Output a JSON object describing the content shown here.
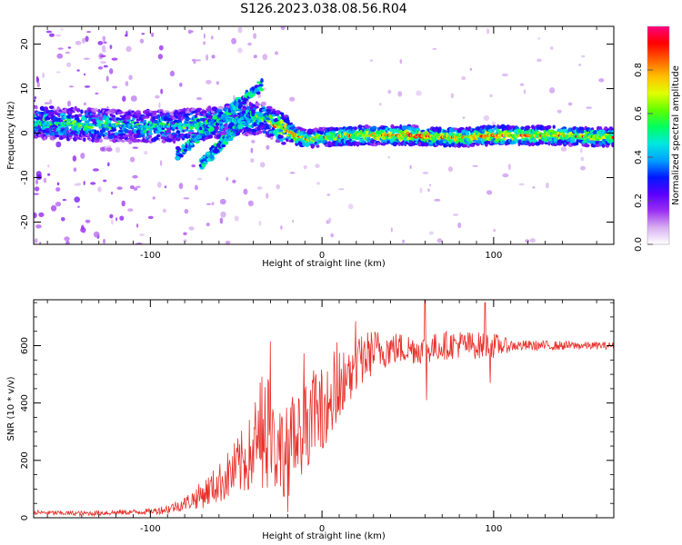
{
  "figure_title": "S126.2023.038.08.56.R04",
  "chart_data": [
    {
      "type": "heatmap",
      "title": "",
      "xlabel": "Height of straight line (km)",
      "ylabel": "Frequency (Hz)",
      "xlim": [
        -168,
        170
      ],
      "ylim": [
        -25,
        24
      ],
      "x_ticks": [
        -100,
        0,
        100
      ],
      "y_ticks": [
        -20,
        -10,
        0,
        10,
        20
      ],
      "colorbar": {
        "label": "Normalized spectral amplitude",
        "range": [
          0,
          1
        ],
        "ticks": [
          0.0,
          0.2,
          0.4,
          0.6,
          0.8
        ],
        "tick_labels": [
          "0.0",
          "0.2",
          "0.4",
          "0.6",
          "0.8"
        ],
        "colormap": [
          "#ffffff",
          "#d8b0f0",
          "#9b2ff2",
          "#5a00ff",
          "#0018ff",
          "#00a0ff",
          "#00e8e0",
          "#00ff60",
          "#60ff00",
          "#e0ff00",
          "#ffc000",
          "#ff6000",
          "#ff0000",
          "#ff0080"
        ]
      },
      "ridge": [
        {
          "x": -168,
          "f": 2.5,
          "amp": 0.45
        },
        {
          "x": -150,
          "f": 2.2,
          "amp": 0.5
        },
        {
          "x": -130,
          "f": 1.8,
          "amp": 0.45
        },
        {
          "x": -110,
          "f": 1.5,
          "amp": 0.45
        },
        {
          "x": -90,
          "f": 1.5,
          "amp": 0.45
        },
        {
          "x": -70,
          "f": 2.0,
          "amp": 0.45
        },
        {
          "x": -50,
          "f": 3.0,
          "amp": 0.45
        },
        {
          "x": -35,
          "f": 3.5,
          "amp": 0.5
        },
        {
          "x": -25,
          "f": 1.5,
          "amp": 0.7
        },
        {
          "x": -15,
          "f": -0.5,
          "amp": 0.75
        },
        {
          "x": -8,
          "f": -1.5,
          "amp": 0.6
        },
        {
          "x": 0,
          "f": -1.0,
          "amp": 0.5
        },
        {
          "x": 20,
          "f": -0.5,
          "amp": 0.65
        },
        {
          "x": 50,
          "f": -0.5,
          "amp": 0.75
        },
        {
          "x": 80,
          "f": -1.0,
          "amp": 0.7
        },
        {
          "x": 100,
          "f": -0.5,
          "amp": 0.8
        },
        {
          "x": 130,
          "f": -0.5,
          "amp": 0.65
        },
        {
          "x": 170,
          "f": -1.0,
          "amp": 0.6
        }
      ],
      "rising_branches": [
        {
          "x": [
            -85,
            -35
          ],
          "f": [
            -5,
            11
          ]
        },
        {
          "x": [
            -70,
            -40
          ],
          "f": [
            -7,
            5
          ]
        }
      ]
    },
    {
      "type": "line",
      "title": "",
      "xlabel": "Height of straight line (km)",
      "ylabel": "SNR (10 * v/v)",
      "xlim": [
        -168,
        170
      ],
      "ylim": [
        0,
        760
      ],
      "x_ticks": [
        -100,
        0,
        100
      ],
      "y_ticks": [
        0,
        200,
        400,
        600
      ],
      "series": [
        {
          "color": "#e8302a",
          "points": [
            [
              -168,
              18
            ],
            [
              -140,
              15
            ],
            [
              -120,
              18
            ],
            [
              -100,
              22
            ],
            [
              -90,
              30
            ],
            [
              -80,
              50
            ],
            [
              -70,
              80
            ],
            [
              -60,
              120
            ],
            [
              -50,
              170
            ],
            [
              -40,
              230
            ],
            [
              -30,
              260
            ],
            [
              -20,
              230
            ],
            [
              -15,
              270
            ],
            [
              -10,
              320
            ],
            [
              -5,
              350
            ],
            [
              0,
              380
            ],
            [
              5,
              400
            ],
            [
              10,
              420
            ],
            [
              15,
              470
            ],
            [
              20,
              520
            ],
            [
              25,
              560
            ],
            [
              30,
              580
            ],
            [
              40,
              590
            ],
            [
              50,
              590
            ],
            [
              60,
              585
            ],
            [
              70,
              600
            ],
            [
              80,
              605
            ],
            [
              90,
              600
            ],
            [
              100,
              600
            ],
            [
              120,
              600
            ],
            [
              140,
              600
            ],
            [
              170,
              600
            ]
          ],
          "noise_amplitude": [
            [
              -168,
              8
            ],
            [
              -100,
              10
            ],
            [
              -80,
              25
            ],
            [
              -60,
              70
            ],
            [
              -40,
              140
            ],
            [
              -30,
              170
            ],
            [
              -20,
              160
            ],
            [
              0,
              140
            ],
            [
              20,
              100
            ],
            [
              40,
              60
            ],
            [
              60,
              50
            ],
            [
              80,
              50
            ],
            [
              100,
              45
            ],
            [
              110,
              20
            ],
            [
              170,
              12
            ]
          ],
          "spikes": [
            [
              -30,
              615
            ],
            [
              -20,
              600
            ],
            [
              -20,
              20
            ],
            [
              60,
              765
            ],
            [
              61,
              410
            ],
            [
              95,
              750
            ],
            [
              98,
              470
            ]
          ]
        }
      ]
    }
  ]
}
